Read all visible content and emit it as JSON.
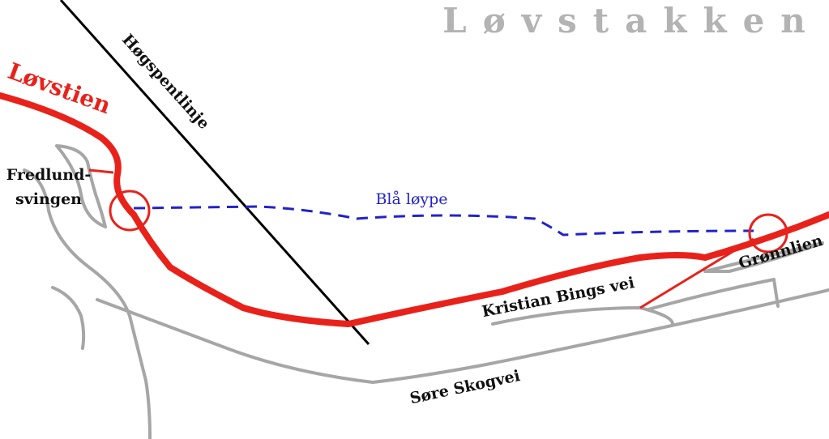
{
  "labels": {
    "area": "Løvstakken",
    "trail": "Løvstien",
    "power_line": "Høgspentlinje",
    "bend": [
      "Fredlund-",
      "svingen"
    ],
    "ski_track": "Blå løype",
    "place": "Grønnlien",
    "road_upper": "Kristian Bings vei",
    "road_lower": "Søre Skogvei"
  }
}
